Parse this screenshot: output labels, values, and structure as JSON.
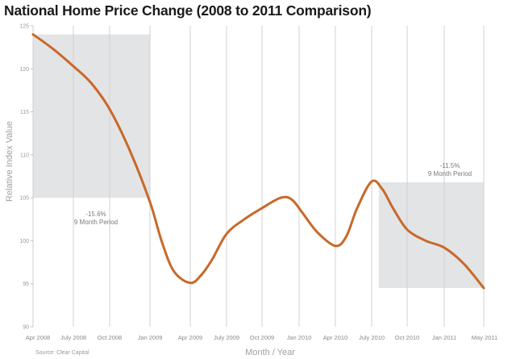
{
  "chart_data": {
    "type": "line",
    "title": "National Home Price Change (2008 to 2011 Comparison)",
    "xlabel": "Month / Year",
    "ylabel": "Relative Index Value",
    "source": "Source: Clear Capital",
    "ylim": [
      90,
      125
    ],
    "yticks": [
      125,
      120,
      115,
      110,
      105,
      100,
      95,
      90
    ],
    "x_tick_labels": [
      "Apr 2008",
      "July 2008",
      "Oct 2008",
      "Jan 2009",
      "Apr 2009",
      "July 2009",
      "Oct 2009",
      "Jan 2010",
      "Apr 2010",
      "July 2010",
      "Oct 2010",
      "Jan 2011",
      "May 2011"
    ],
    "grid": "vertical",
    "line_color": "#c8692a",
    "shade_color": "#e3e4e6",
    "series": [
      {
        "name": "Relative Index Value",
        "x": [
          0,
          0.5,
          1,
          1.5,
          2,
          2.5,
          3,
          3.3,
          3.6,
          4,
          4.3,
          4.6,
          5,
          5.5,
          6,
          6.5,
          6.8,
          7.1,
          7.5,
          8,
          8.3,
          8.6,
          9,
          9.3,
          9.6,
          10,
          10.5,
          11,
          11.5,
          12
        ],
        "values": [
          124.0,
          122.3,
          120.3,
          118.3,
          115.3,
          110.5,
          104.5,
          99.8,
          96.4,
          95.1,
          96.0,
          97.8,
          100.8,
          102.5,
          103.8,
          105.0,
          104.8,
          103.2,
          101.0,
          99.4,
          100.5,
          103.8,
          106.9,
          106.0,
          103.8,
          101.3,
          100.0,
          99.2,
          97.3,
          94.5
        ]
      }
    ],
    "annotations": [
      {
        "label_line1": "-15.6%",
        "label_line2": "9 Month Period",
        "x_range": [
          0,
          3
        ],
        "y_range": [
          105,
          124
        ]
      },
      {
        "label_line1": "-11.5%",
        "label_line2": "9 Month Period",
        "x_range": [
          9.2,
          12
        ],
        "y_range": [
          94.5,
          106.8
        ]
      }
    ]
  }
}
